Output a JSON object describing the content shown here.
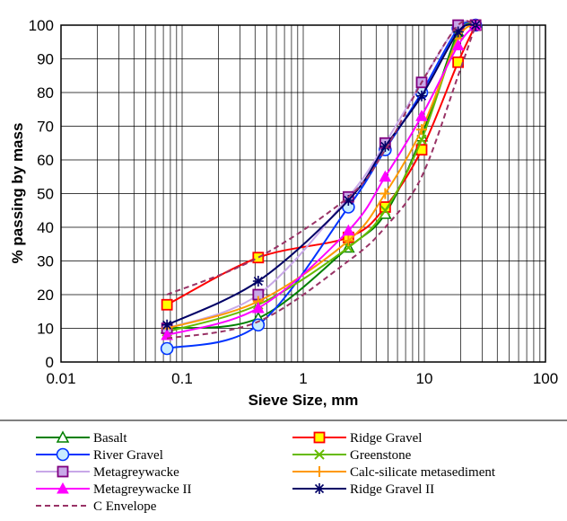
{
  "chart_data": {
    "type": "line",
    "title": "",
    "xlabel": "Sieve Size, mm",
    "ylabel": "% passing by mass",
    "xscale": "log",
    "xlim": [
      0.01,
      100
    ],
    "ylim": [
      0,
      100
    ],
    "xticks": [
      0.01,
      0.1,
      1,
      10,
      100
    ],
    "xtick_labels": [
      "0.01",
      "0.1",
      "1",
      "10",
      "100"
    ],
    "yticks": [
      0,
      10,
      20,
      30,
      40,
      50,
      60,
      70,
      80,
      90,
      100
    ],
    "ytick_labels": [
      "0",
      "10",
      "20",
      "30",
      "40",
      "50",
      "60",
      "70",
      "80",
      "90",
      "100"
    ],
    "grid": true,
    "legend_position": "bottom",
    "x": [
      0.075,
      0.425,
      2.36,
      4.75,
      9.5,
      19,
      26.5
    ],
    "series": [
      {
        "name": "Basalt",
        "color": "#008000",
        "marker": "triangle-open",
        "values": [
          10,
          13,
          34,
          44,
          67,
          98,
          100
        ]
      },
      {
        "name": "Ridge Gravel",
        "color": "#ff0000",
        "marker": "square-yellow",
        "values": [
          17,
          31,
          37,
          46,
          63,
          89,
          100
        ]
      },
      {
        "name": "River Gravel",
        "color": "#0033ff",
        "marker": "circle-open",
        "values": [
          4,
          11,
          46,
          63,
          80,
          99,
          100
        ]
      },
      {
        "name": "Greenstone",
        "color": "#66bb00",
        "marker": "x",
        "values": [
          9,
          17,
          34,
          45,
          66,
          97,
          100
        ]
      },
      {
        "name": "Metagreywacke",
        "color": "#c8a8e8",
        "marker": "square-purple",
        "values": [
          10,
          20,
          49,
          65,
          83,
          100,
          100
        ]
      },
      {
        "name": "Calc-silicate metasediment",
        "color": "#ff9900",
        "marker": "plus",
        "values": [
          10,
          18,
          36,
          50,
          69,
          96,
          100
        ]
      },
      {
        "name": "Metagreywacke II",
        "color": "#ff00ff",
        "marker": "triangle-filled",
        "values": [
          8,
          16,
          39,
          55,
          73,
          94,
          100
        ]
      },
      {
        "name": "Ridge Gravel II",
        "color": "#000066",
        "marker": "asterisk",
        "values": [
          11,
          24,
          48,
          64,
          79,
          98,
          100
        ]
      },
      {
        "name": "C Envelope",
        "color": "#993366",
        "marker": "none",
        "dash": true,
        "values": [
          20,
          31,
          49,
          63,
          83,
          100,
          100
        ]
      },
      {
        "name": "C Envelope",
        "color": "#993366",
        "marker": "none",
        "dash": true,
        "legend": false,
        "values": [
          7,
          12,
          30,
          40,
          55,
          85,
          100
        ]
      }
    ]
  }
}
